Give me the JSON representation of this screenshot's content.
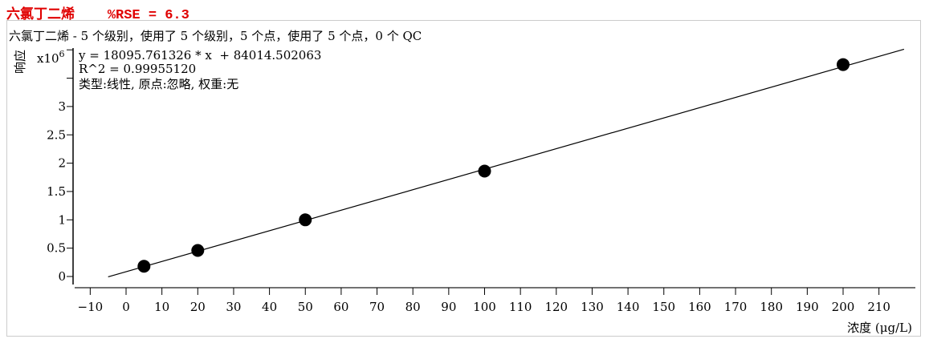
{
  "header": {
    "title": "六氯丁二烯",
    "rse": "%RSE = 6.3"
  },
  "chart_data": {
    "type": "scatter",
    "title": "六氯丁二烯 - 5 个级别，使用了 5 个级别，5 个点，使用了 5 个点，0 个 QC",
    "xlabel": "浓度 (μg/L)",
    "ylabel": "响应",
    "yscale_label": "x10",
    "yscale_exp": "6",
    "equation": "y = 18095.761326 * x  + 84014.502063",
    "r2": "R^2 = 0.99955120",
    "fit_info": "类型:线性, 原点:忽略, 权重:无",
    "xlim": [
      -14,
      220
    ],
    "ylim": [
      -0.15,
      4.0
    ],
    "xticks": [
      -10,
      0,
      10,
      20,
      30,
      40,
      50,
      60,
      70,
      80,
      90,
      100,
      110,
      120,
      130,
      140,
      150,
      160,
      170,
      180,
      190,
      200,
      210
    ],
    "yticks": [
      0,
      0.5,
      1,
      1.5,
      2,
      2.5,
      3,
      3.5,
      4
    ],
    "ytick_labels": [
      "0",
      "0.5",
      "1",
      "1.5",
      "2",
      "2.5",
      "3",
      "",
      ""
    ],
    "points": {
      "x": [
        5,
        20,
        50,
        100,
        200
      ],
      "y": [
        0.18,
        0.46,
        1.0,
        1.86,
        3.74
      ]
    },
    "fit": {
      "slope": 18095.761326,
      "intercept": 84014.502063,
      "x_range": [
        -5,
        217
      ]
    },
    "grid": false
  }
}
